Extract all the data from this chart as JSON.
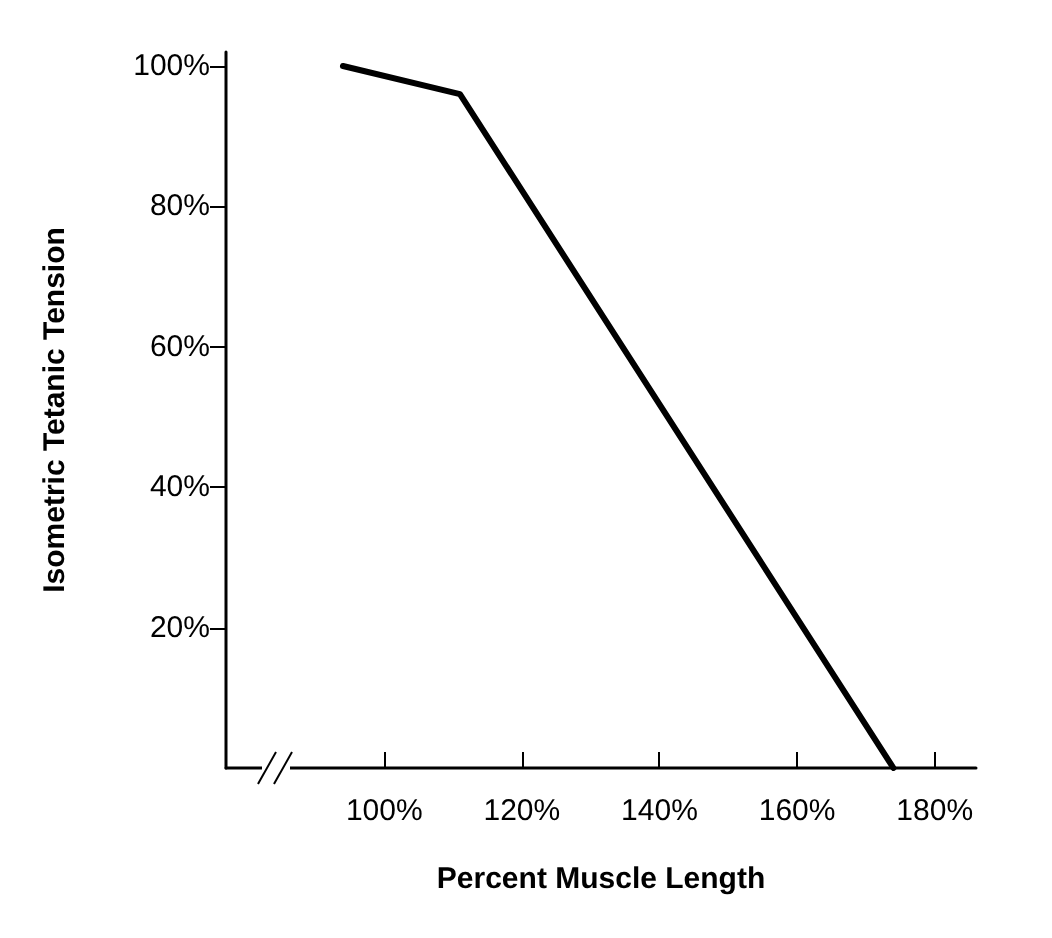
{
  "chart_data": {
    "type": "line",
    "xlabel": "Percent Muscle Length",
    "ylabel": "Isometric Tetanic Tension",
    "x": [
      94,
      111,
      174
    ],
    "series": [
      {
        "color": "#000000",
        "values": [
          100,
          96,
          0
        ]
      }
    ],
    "xlim": [
      77,
      186
    ],
    "ylim": [
      0,
      102
    ],
    "xticks": [
      {
        "value": 100,
        "label": "100%"
      },
      {
        "value": 120,
        "label": "120%"
      },
      {
        "value": 140,
        "label": "140%"
      },
      {
        "value": 160,
        "label": "160%"
      },
      {
        "value": 180,
        "label": "180%"
      }
    ],
    "yticks": [
      {
        "value": 20,
        "label": "20%"
      },
      {
        "value": 40,
        "label": "40%"
      },
      {
        "value": 60,
        "label": "60%"
      },
      {
        "value": 80,
        "label": "80%"
      },
      {
        "value": 100,
        "label": "100%"
      }
    ],
    "grid": false,
    "marker": "none",
    "line_style": "solid"
  }
}
